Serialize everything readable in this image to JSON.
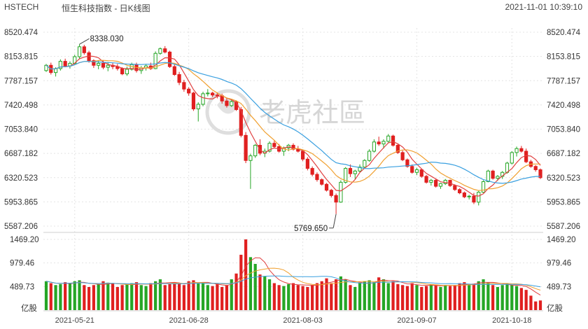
{
  "header": {
    "symbol": "HSTECH",
    "name": "恒生科技指数 - 日K线图",
    "timestamp": "2021-11-01 10:39:10"
  },
  "watermark": {
    "text": "老虎社區"
  },
  "colors": {
    "up": "#26a626",
    "down": "#e02020",
    "ma5": "#e04040",
    "ma10": "#f0a030",
    "ma20": "#3aa0e0",
    "grid": "#e4e4e4",
    "annotation": "#444444"
  },
  "chart_data": [
    {
      "type": "candlestick",
      "name": "price",
      "ylim": [
        5587.206,
        8520.474
      ],
      "y_ticks": [
        "8520.474",
        "8153.815",
        "7787.157",
        "7420.498",
        "7053.840",
        "6687.182",
        "6320.523",
        "5953.865",
        "5587.206"
      ],
      "x_ticks": [
        "2021-05-21",
        "2021-06-28",
        "2021-08-03",
        "2021-09-07",
        "2021-10-18"
      ],
      "annotations": [
        {
          "label": "8338.030",
          "kind": "high"
        },
        {
          "label": "5769.650",
          "kind": "low"
        }
      ],
      "candles": [
        [
          7940,
          8040,
          7920,
          8020
        ],
        [
          8020,
          8060,
          7880,
          7910
        ],
        [
          7910,
          7990,
          7850,
          7970
        ],
        [
          7970,
          8110,
          7940,
          8080
        ],
        [
          8080,
          8120,
          7990,
          8010
        ],
        [
          8010,
          8080,
          7970,
          8050
        ],
        [
          8050,
          8180,
          8030,
          8150
        ],
        [
          8150,
          8338.03,
          8120,
          8300
        ],
        [
          8300,
          8330,
          8180,
          8210
        ],
        [
          8210,
          8240,
          8060,
          8090
        ],
        [
          8090,
          8110,
          7980,
          8020
        ],
        [
          8020,
          8090,
          7960,
          8050
        ],
        [
          8050,
          8090,
          7960,
          7990
        ],
        [
          7990,
          8070,
          7930,
          8020
        ],
        [
          8020,
          8060,
          7960,
          8000
        ],
        [
          8000,
          8040,
          7940,
          7970
        ],
        [
          7970,
          7990,
          7870,
          7890
        ],
        [
          7890,
          8000,
          7860,
          7960
        ],
        [
          7960,
          8060,
          7940,
          8030
        ],
        [
          8030,
          8060,
          7910,
          7940
        ],
        [
          7940,
          8010,
          7890,
          7980
        ],
        [
          7980,
          8040,
          7940,
          8010
        ],
        [
          8010,
          8060,
          7950,
          7970
        ],
        [
          7970,
          8230,
          7960,
          8200
        ],
        [
          8200,
          8290,
          8180,
          8270
        ],
        [
          8270,
          8310,
          8200,
          8220
        ],
        [
          8220,
          8240,
          7980,
          8000
        ],
        [
          8000,
          8040,
          7860,
          7880
        ],
        [
          7880,
          7920,
          7720,
          7760
        ],
        [
          7760,
          7800,
          7620,
          7660
        ],
        [
          7660,
          7690,
          7560,
          7600
        ],
        [
          7600,
          7620,
          7330,
          7360
        ],
        [
          7360,
          7460,
          7170,
          7430
        ],
        [
          7430,
          7620,
          7400,
          7590
        ],
        [
          7590,
          7660,
          7550,
          7600
        ],
        [
          7600,
          7620,
          7540,
          7570
        ],
        [
          7570,
          7610,
          7520,
          7560
        ],
        [
          7560,
          7590,
          7440,
          7480
        ],
        [
          7480,
          7520,
          7380,
          7410
        ],
        [
          7410,
          7500,
          7390,
          7470
        ],
        [
          7470,
          7490,
          7330,
          7350
        ],
        [
          7350,
          7390,
          6930,
          6960
        ],
        [
          6960,
          7010,
          6540,
          6580
        ],
        [
          6580,
          6680,
          6150,
          6650
        ],
        [
          6650,
          6830,
          6620,
          6810
        ],
        [
          6810,
          6900,
          6660,
          6690
        ],
        [
          6690,
          6760,
          6630,
          6720
        ],
        [
          6720,
          6870,
          6700,
          6840
        ],
        [
          6840,
          6880,
          6760,
          6790
        ],
        [
          6790,
          6830,
          6700,
          6720
        ],
        [
          6720,
          6790,
          6650,
          6770
        ],
        [
          6770,
          6830,
          6720,
          6810
        ],
        [
          6810,
          6840,
          6730,
          6750
        ],
        [
          6750,
          6800,
          6700,
          6720
        ],
        [
          6720,
          6740,
          6570,
          6600
        ],
        [
          6600,
          6630,
          6430,
          6460
        ],
        [
          6460,
          6490,
          6340,
          6370
        ],
        [
          6370,
          6400,
          6260,
          6290
        ],
        [
          6290,
          6310,
          6200,
          6220
        ],
        [
          6220,
          6240,
          6110,
          6130
        ],
        [
          6130,
          6150,
          6020,
          6050
        ],
        [
          6050,
          6080,
          5769.65,
          5950
        ],
        [
          5950,
          6280,
          5940,
          6250
        ],
        [
          6250,
          6480,
          6230,
          6460
        ],
        [
          6460,
          6520,
          6330,
          6380
        ],
        [
          6380,
          6440,
          6300,
          6420
        ],
        [
          6420,
          6520,
          6400,
          6480
        ],
        [
          6480,
          6600,
          6460,
          6580
        ],
        [
          6580,
          6750,
          6560,
          6720
        ],
        [
          6720,
          6900,
          6700,
          6860
        ],
        [
          6860,
          6940,
          6800,
          6830
        ],
        [
          6830,
          6900,
          6760,
          6870
        ],
        [
          6870,
          6980,
          6850,
          6950
        ],
        [
          6950,
          6970,
          6790,
          6810
        ],
        [
          6810,
          6830,
          6680,
          6700
        ],
        [
          6700,
          6730,
          6570,
          6590
        ],
        [
          6590,
          6610,
          6470,
          6490
        ],
        [
          6490,
          6520,
          6380,
          6400
        ],
        [
          6400,
          6470,
          6360,
          6440
        ],
        [
          6440,
          6460,
          6320,
          6340
        ],
        [
          6340,
          6360,
          6230,
          6250
        ],
        [
          6250,
          6300,
          6200,
          6280
        ],
        [
          6280,
          6300,
          6170,
          6190
        ],
        [
          6190,
          6240,
          6150,
          6230
        ],
        [
          6230,
          6300,
          6210,
          6280
        ],
        [
          6280,
          6290,
          6180,
          6200
        ],
        [
          6200,
          6220,
          6120,
          6140
        ],
        [
          6140,
          6160,
          6070,
          6090
        ],
        [
          6090,
          6110,
          6010,
          6030
        ],
        [
          6030,
          6060,
          5990,
          6040
        ],
        [
          6040,
          6090,
          5920,
          5950
        ],
        [
          5950,
          6120,
          5900,
          6100
        ],
        [
          6100,
          6280,
          6090,
          6260
        ],
        [
          6260,
          6440,
          6250,
          6420
        ],
        [
          6420,
          6440,
          6290,
          6310
        ],
        [
          6310,
          6360,
          6270,
          6340
        ],
        [
          6340,
          6420,
          6300,
          6400
        ],
        [
          6400,
          6560,
          6380,
          6540
        ],
        [
          6540,
          6720,
          6520,
          6700
        ],
        [
          6700,
          6790,
          6640,
          6760
        ],
        [
          6760,
          6800,
          6700,
          6720
        ],
        [
          6720,
          6760,
          6540,
          6560
        ],
        [
          6560,
          6590,
          6470,
          6490
        ],
        [
          6490,
          6510,
          6410,
          6440
        ],
        [
          6440,
          6460,
          6300,
          6320
        ]
      ]
    },
    {
      "type": "bar",
      "name": "volume",
      "unit": "亿股",
      "ylim": [
        0,
        1469.2
      ],
      "y_ticks": [
        "1469.20",
        "979.46",
        "489.73"
      ],
      "values": [
        600,
        560,
        520,
        540,
        580,
        560,
        600,
        620,
        520,
        480,
        520,
        540,
        600,
        570,
        550,
        480,
        520,
        540,
        560,
        580,
        520,
        500,
        560,
        600,
        640,
        520,
        540,
        580,
        550,
        520,
        600,
        620,
        560,
        580,
        520,
        500,
        540,
        480,
        520,
        640,
        760,
        1150,
        1469.2,
        1100,
        960,
        740,
        700,
        640,
        560,
        520,
        500,
        540,
        560,
        520,
        500,
        480,
        520,
        560,
        600,
        660,
        560,
        640,
        700,
        640,
        520,
        480,
        560,
        600,
        620,
        580,
        680,
        640,
        560,
        600,
        540,
        520,
        500,
        560,
        520,
        480,
        500,
        540,
        520,
        480,
        520,
        500,
        520,
        560,
        580,
        520,
        540,
        600,
        640,
        580,
        520,
        480,
        520,
        560,
        520,
        500,
        460,
        420,
        300,
        180,
        200
      ]
    }
  ]
}
